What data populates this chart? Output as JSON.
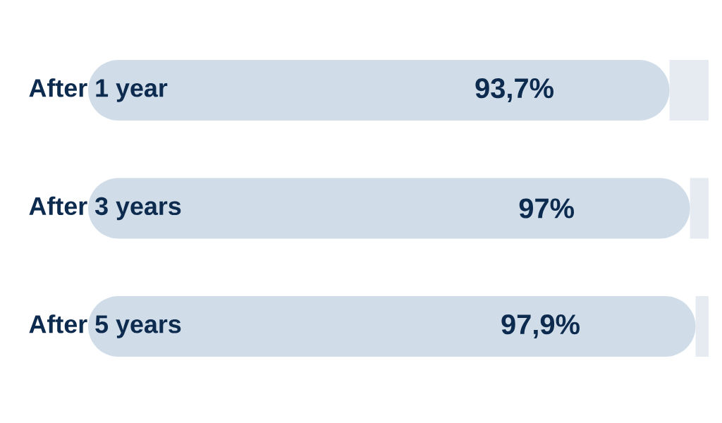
{
  "chart_data": {
    "type": "bar",
    "orientation": "horizontal",
    "stacked": true,
    "categories": [
      "After 1 year",
      "After 3 years",
      "After 5 years"
    ],
    "series": [
      {
        "color": "#d0dde9",
        "values": [
          93.7,
          97,
          97.9
        ],
        "value_labels": [
          "93,7%",
          "97%",
          "97,9%"
        ]
      },
      {
        "color": "#e6ebf1",
        "values": [
          6.3,
          3,
          2.1
        ]
      }
    ],
    "tick_labels": "y"
  }
}
